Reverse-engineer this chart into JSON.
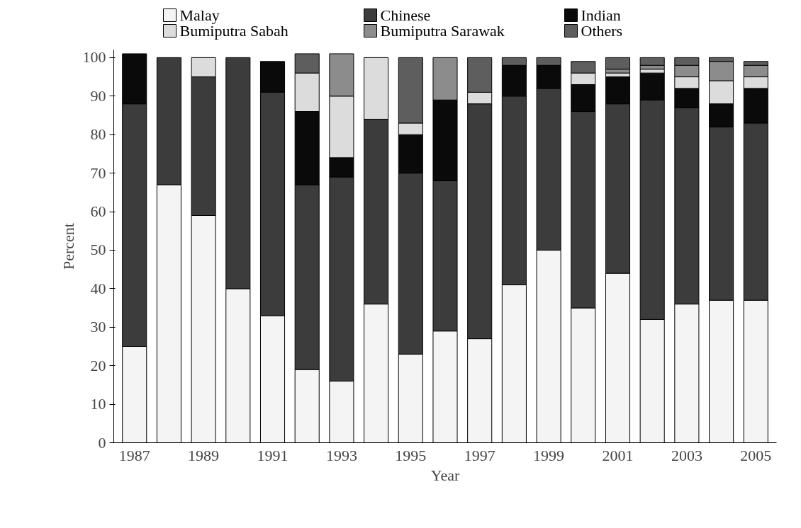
{
  "chart_data": {
    "type": "bar",
    "stacked": true,
    "xlabel": "Year",
    "ylabel": "Percent",
    "categories": [
      "1987",
      null,
      "1989",
      null,
      "1991",
      null,
      "1993",
      null,
      "1995",
      null,
      "1997",
      null,
      "1999",
      null,
      "2001",
      null,
      "2003",
      null,
      "2005"
    ],
    "ylim": [
      0,
      102
    ],
    "yticks": [
      0,
      10,
      20,
      30,
      40,
      50,
      60,
      70,
      80,
      90,
      100
    ],
    "grid": false,
    "legend": "top",
    "series": [
      {
        "name": "Malay",
        "color": "#f4f4f4",
        "values": [
          25,
          67,
          59,
          40,
          33,
          19,
          16,
          36,
          23,
          29,
          27,
          41,
          50,
          35,
          44,
          32,
          36,
          37,
          37
        ]
      },
      {
        "name": "Chinese",
        "color": "#3c3c3c",
        "values": [
          63,
          33,
          36,
          60,
          58,
          48,
          53,
          48,
          47,
          39,
          61,
          49,
          42,
          51,
          44,
          57,
          51,
          45,
          46
        ]
      },
      {
        "name": "Indian",
        "color": "#0a0a0a",
        "values": [
          13,
          null,
          null,
          null,
          8,
          19,
          5,
          null,
          10,
          21,
          null,
          8,
          6,
          7,
          7,
          7,
          5,
          6,
          9
        ]
      },
      {
        "name": "Bumiputra Sabah",
        "color": "#dcdcdc",
        "values": [
          null,
          null,
          5,
          null,
          null,
          10,
          16,
          16,
          3,
          null,
          3,
          null,
          null,
          3,
          1,
          1,
          3,
          6,
          3
        ]
      },
      {
        "name": "Bumiputra Sarawak",
        "color": "#8c8c8c",
        "values": [
          null,
          null,
          null,
          null,
          null,
          null,
          11,
          null,
          null,
          11,
          null,
          null,
          null,
          null,
          1,
          1,
          3,
          5,
          3
        ]
      },
      {
        "name": "Others",
        "color": "#5e5e5e",
        "values": [
          null,
          null,
          null,
          null,
          null,
          5,
          null,
          null,
          17,
          null,
          9,
          2,
          2,
          3,
          3,
          2,
          2,
          1,
          1
        ]
      }
    ]
  }
}
